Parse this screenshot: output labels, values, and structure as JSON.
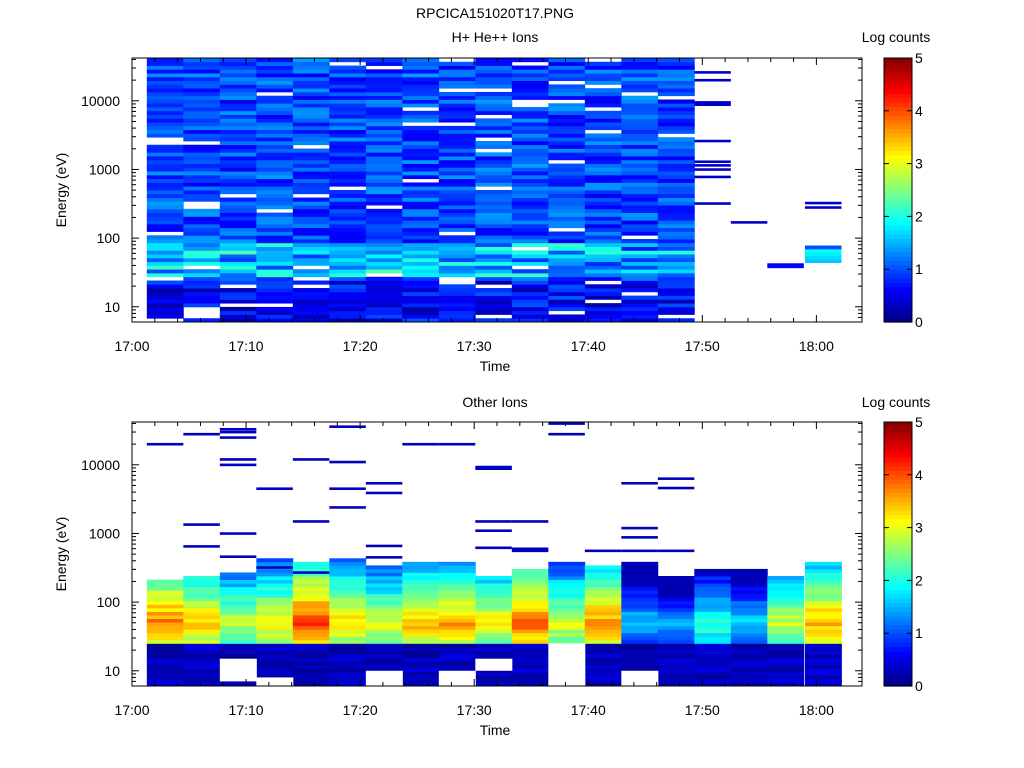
{
  "figure": {
    "title": "RPCICA151020T17.PNG"
  },
  "chart_data": [
    {
      "type": "heatmap",
      "title": "H+ He++ Ions",
      "xlabel": "Time",
      "ylabel": "Energy (eV)",
      "x_tick_labels": [
        "17:00",
        "17:10",
        "17:20",
        "17:30",
        "17:40",
        "17:50",
        "18:00"
      ],
      "x_range_minutes": [
        0,
        64
      ],
      "y_scale": "log",
      "y_tick_labels": [
        "10",
        "100",
        "1000",
        "10000"
      ],
      "y_range": [
        6,
        42000
      ],
      "colorbar": {
        "label": "Log counts",
        "min": 0,
        "max": 5,
        "tick_labels": [
          "0",
          "1",
          "2",
          "3",
          "4",
          "5"
        ]
      },
      "time_bins_minutes": [
        [
          1.3,
          4.5
        ],
        [
          4.5,
          7.7
        ],
        [
          7.7,
          10.9
        ],
        [
          10.9,
          14.1
        ],
        [
          14.1,
          17.3
        ],
        [
          17.3,
          20.5
        ],
        [
          20.5,
          23.7
        ],
        [
          23.7,
          26.9
        ],
        [
          26.9,
          30.1
        ],
        [
          30.1,
          33.3
        ],
        [
          33.3,
          36.5
        ],
        [
          36.5,
          39.7
        ],
        [
          39.7,
          42.9
        ],
        [
          42.9,
          46.1
        ],
        [
          46.1,
          49.3
        ]
      ],
      "energy_bins": 70,
      "sparse_segments": [
        {
          "t0": 49.3,
          "t1": 52.5,
          "energy_eV": [
            26000,
            20000,
            9500,
            8800,
            2600,
            1300,
            1150,
            1000,
            780,
            320
          ]
        },
        {
          "t0": 52.5,
          "t1": 55.7,
          "energy_eV": [
            170
          ]
        },
        {
          "t0": 55.7,
          "t1": 58.9,
          "energy_eV": [
            37
          ],
          "energy_high_eV": 43
        },
        {
          "t0": 59.0,
          "t1": 62.2,
          "energy_eV": [
            325,
            280
          ]
        },
        {
          "t0": 59.0,
          "t1": 62.2,
          "band_eV": [
            44,
            78
          ],
          "level": 1.6
        }
      ],
      "notes": "mostly 0.4-1.4 log counts, enhanced 1.5-2.3 around 30-80 eV"
    },
    {
      "type": "heatmap",
      "title": "Other Ions",
      "xlabel": "Time",
      "ylabel": "Energy (eV)",
      "x_tick_labels": [
        "17:00",
        "17:10",
        "17:20",
        "17:30",
        "17:40",
        "17:50",
        "18:00"
      ],
      "x_range_minutes": [
        0,
        64
      ],
      "y_scale": "log",
      "y_tick_labels": [
        "10",
        "100",
        "1000",
        "10000"
      ],
      "y_range": [
        6,
        42000
      ],
      "colorbar": {
        "label": "Log counts",
        "min": 0,
        "max": 5,
        "tick_labels": [
          "0",
          "1",
          "2",
          "3",
          "4",
          "5"
        ]
      },
      "time_bins_minutes": [
        [
          1.3,
          4.5
        ],
        [
          4.5,
          7.7
        ],
        [
          7.7,
          10.9
        ],
        [
          10.9,
          14.1
        ],
        [
          14.1,
          17.3
        ],
        [
          17.3,
          20.5
        ],
        [
          20.5,
          23.7
        ],
        [
          23.7,
          26.9
        ],
        [
          26.9,
          30.1
        ],
        [
          30.1,
          33.3
        ],
        [
          33.3,
          36.5
        ],
        [
          36.5,
          39.7
        ],
        [
          39.7,
          42.9
        ],
        [
          42.9,
          46.1
        ],
        [
          46.1,
          49.3
        ],
        [
          49.3,
          52.5
        ],
        [
          52.5,
          55.7
        ],
        [
          55.7,
          58.9
        ],
        [
          59.0,
          62.2
        ]
      ],
      "core_band_eV": [
        25,
        450
      ],
      "peak_energy_eV": 50,
      "peak_log_counts": [
        3.8,
        3.4,
        2.9,
        3.2,
        4.1,
        3.3,
        3.0,
        3.5,
        3.6,
        3.2,
        3.9,
        3.0,
        3.7,
        1.7,
        1.4,
        2.2,
        1.8,
        2.9,
        3.6
      ],
      "high_energy_lines": [
        {
          "t": 1.3,
          "energy_eV": [
            20000
          ]
        },
        {
          "t": 4.5,
          "energy_eV": [
            28000,
            1350,
            650
          ]
        },
        {
          "t": 7.7,
          "energy_eV": [
            33000,
            30000,
            25000,
            12000,
            10000,
            1000,
            460
          ]
        },
        {
          "t": 10.9,
          "energy_eV": [
            4500,
            320
          ]
        },
        {
          "t": 14.1,
          "energy_eV": [
            12000,
            1500,
            270
          ]
        },
        {
          "t": 17.3,
          "energy_eV": [
            2400
          ]
        },
        {
          "t": 17.3,
          "energy_eV": [
            36000,
            11000,
            4500
          ]
        },
        {
          "t": 20.5,
          "energy_eV": [
            5400,
            3900,
            660,
            450
          ]
        },
        {
          "t": 23.7,
          "energy_eV": [
            20000
          ]
        },
        {
          "t": 26.9,
          "energy_eV": [
            20000
          ]
        },
        {
          "t": 30.1,
          "energy_eV": [
            9300,
            8800,
            1500,
            1100,
            620
          ]
        },
        {
          "t": 33.3,
          "energy_eV": [
            1500,
            600,
            560
          ]
        },
        {
          "t": 36.5,
          "energy_eV": [
            40000,
            28000
          ]
        },
        {
          "t": 39.7,
          "energy_eV": [
            560
          ]
        },
        {
          "t": 42.9,
          "energy_eV": [
            5400,
            1200,
            880,
            560
          ]
        },
        {
          "t": 46.1,
          "energy_eV": [
            6300,
            4600,
            560
          ]
        }
      ],
      "low_energy_gaps": [
        {
          "t0": 7.7,
          "t1": 10.9,
          "energy_eV": [
            7,
            15
          ]
        },
        {
          "t0": 10.9,
          "t1": 14.1,
          "energy_eV": [
            6,
            8
          ]
        },
        {
          "t0": 20.5,
          "t1": 23.7,
          "energy_eV": [
            6,
            10
          ]
        },
        {
          "t0": 26.9,
          "t1": 30.1,
          "energy_eV": [
            6,
            10
          ]
        },
        {
          "t0": 30.1,
          "t1": 33.3,
          "energy_eV": [
            10,
            15
          ]
        },
        {
          "t0": 36.5,
          "t1": 39.7,
          "energy_eV": [
            6,
            25
          ]
        },
        {
          "t0": 42.9,
          "t1": 46.1,
          "energy_eV": [
            6,
            10
          ]
        }
      ]
    }
  ]
}
